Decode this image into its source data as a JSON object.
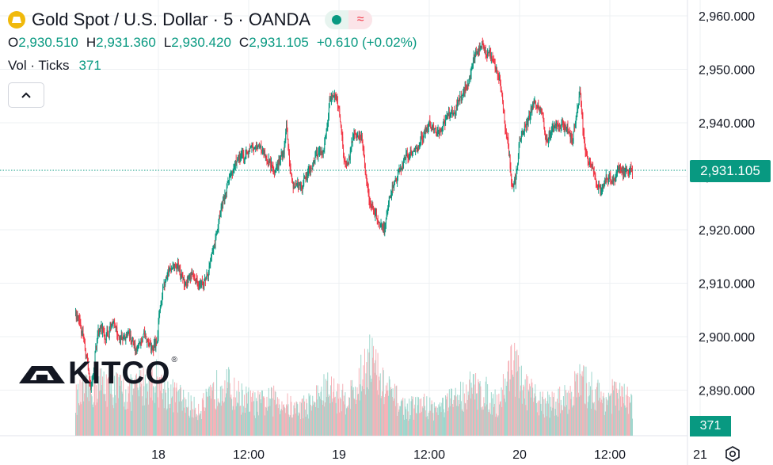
{
  "header": {
    "title": "Gold Spot / U.S. Dollar · 5 · OANDA",
    "ohlc": [
      {
        "k": "O",
        "v": "2,930.510"
      },
      {
        "k": "H",
        "v": "2,931.360"
      },
      {
        "k": "L",
        "v": "2,930.420"
      },
      {
        "k": "C",
        "v": "2,931.105"
      }
    ],
    "change": "+0.610 (+0.02%)",
    "vol_label": "Vol · Ticks",
    "vol_value": "371",
    "pill_wave": "≈"
  },
  "logo": {
    "text": "KITCO",
    "reg": "®"
  },
  "price_label": "2,931.105",
  "volume_label": "371",
  "colors": {
    "up": "#089981",
    "down": "#f23645",
    "vol_up": "#9ed6cc",
    "vol_down": "#f6b1b7",
    "grid": "#eef0f3",
    "accent": "#089981"
  },
  "icons": {
    "symbol": "gold-coin-icon",
    "collapse": "chevron-up-icon",
    "settings": "gear-icon"
  },
  "chart_data": {
    "type": "candlestick",
    "title": "Gold Spot / U.S. Dollar · 5 · OANDA",
    "y_ticks": [
      {
        "value": 2960,
        "label": "2,960.000"
      },
      {
        "value": 2950,
        "label": "2,950.000"
      },
      {
        "value": 2940,
        "label": "2,940.000"
      },
      {
        "value": 2930,
        "label": "2,930.000"
      },
      {
        "value": 2920,
        "label": "2,920.000"
      },
      {
        "value": 2910,
        "label": "2,910.000"
      },
      {
        "value": 2900,
        "label": "2,900.000"
      },
      {
        "value": 2890,
        "label": "2,890.000"
      }
    ],
    "x_ticks": [
      {
        "hour": 24,
        "label": "18"
      },
      {
        "hour": 36,
        "label": "12:00"
      },
      {
        "hour": 48,
        "label": "19"
      },
      {
        "hour": 60,
        "label": "12:00"
      },
      {
        "hour": 72,
        "label": "20"
      },
      {
        "hour": 84,
        "label": "12:00"
      },
      {
        "hour": 96,
        "label": "21"
      }
    ],
    "x_unit": "hours",
    "ylim": [
      2886,
      2962
    ],
    "xlim": [
      13,
      98.5
    ],
    "current_price": 2931.105,
    "grid": true,
    "price_path": [
      [
        13.0,
        2904
      ],
      [
        14.0,
        2900
      ],
      [
        15.0,
        2890
      ],
      [
        16.0,
        2902
      ],
      [
        17.0,
        2900
      ],
      [
        18.0,
        2903
      ],
      [
        19.0,
        2899
      ],
      [
        20.0,
        2901
      ],
      [
        21.0,
        2897
      ],
      [
        22.0,
        2900
      ],
      [
        23.0,
        2898
      ],
      [
        23.8,
        2899
      ],
      [
        24.0,
        2903
      ],
      [
        24.5,
        2909
      ],
      [
        25.5,
        2913
      ],
      [
        26.5,
        2913
      ],
      [
        27.5,
        2910
      ],
      [
        28.5,
        2912
      ],
      [
        29.5,
        2909
      ],
      [
        30.5,
        2912
      ],
      [
        31.5,
        2918
      ],
      [
        32.5,
        2925
      ],
      [
        33.5,
        2930
      ],
      [
        34.5,
        2933
      ],
      [
        35.5,
        2934
      ],
      [
        36.5,
        2936
      ],
      [
        37.5,
        2935
      ],
      [
        38.5,
        2933
      ],
      [
        39.5,
        2931
      ],
      [
        40.5,
        2934
      ],
      [
        41.0,
        2939
      ],
      [
        41.5,
        2930
      ],
      [
        42.0,
        2928
      ],
      [
        43.0,
        2928
      ],
      [
        44.0,
        2931
      ],
      [
        45.0,
        2934
      ],
      [
        46.0,
        2935
      ],
      [
        46.8,
        2945
      ],
      [
        47.5,
        2945
      ],
      [
        48.0,
        2942
      ],
      [
        48.5,
        2934
      ],
      [
        49.0,
        2931
      ],
      [
        50.0,
        2938
      ],
      [
        51.0,
        2937
      ],
      [
        51.5,
        2930
      ],
      [
        52.0,
        2925
      ],
      [
        53.0,
        2922
      ],
      [
        54.0,
        2920
      ],
      [
        55.0,
        2928
      ],
      [
        56.0,
        2931
      ],
      [
        57.0,
        2934
      ],
      [
        58.0,
        2935
      ],
      [
        59.0,
        2937
      ],
      [
        60.0,
        2940
      ],
      [
        61.0,
        2938
      ],
      [
        62.0,
        2940
      ],
      [
        63.0,
        2942
      ],
      [
        64.0,
        2944
      ],
      [
        65.0,
        2947
      ],
      [
        66.0,
        2953
      ],
      [
        67.0,
        2954
      ],
      [
        68.0,
        2953
      ],
      [
        69.0,
        2950
      ],
      [
        69.5,
        2946
      ],
      [
        70.0,
        2940
      ],
      [
        70.5,
        2935
      ],
      [
        71.0,
        2927
      ],
      [
        71.5,
        2930
      ],
      [
        72.0,
        2937
      ],
      [
        73.0,
        2940
      ],
      [
        74.0,
        2944
      ],
      [
        75.0,
        2942
      ],
      [
        75.5,
        2936
      ],
      [
        76.0,
        2938
      ],
      [
        77.0,
        2940
      ],
      [
        78.0,
        2939
      ],
      [
        79.0,
        2937
      ],
      [
        80.0,
        2946
      ],
      [
        80.5,
        2937
      ],
      [
        81.0,
        2933
      ],
      [
        82.0,
        2930
      ],
      [
        82.8,
        2927
      ],
      [
        83.5,
        2930
      ],
      [
        84.0,
        2929
      ],
      [
        85.0,
        2931
      ],
      [
        86.0,
        2931
      ],
      [
        87.0,
        2931.105
      ]
    ],
    "volume_level": [
      [
        13.0,
        0.35
      ],
      [
        15.0,
        0.45
      ],
      [
        17.0,
        0.5
      ],
      [
        20.0,
        0.4
      ],
      [
        23.5,
        0.55
      ],
      [
        24.5,
        0.45
      ],
      [
        27.0,
        0.35
      ],
      [
        29.0,
        0.25
      ],
      [
        31.0,
        0.35
      ],
      [
        32.5,
        0.55
      ],
      [
        34.0,
        0.4
      ],
      [
        37.0,
        0.3
      ],
      [
        40.0,
        0.35
      ],
      [
        42.0,
        0.25
      ],
      [
        44.0,
        0.3
      ],
      [
        46.5,
        0.45
      ],
      [
        48.5,
        0.35
      ],
      [
        50.5,
        0.45
      ],
      [
        52.0,
        0.8
      ],
      [
        53.5,
        0.5
      ],
      [
        55.5,
        0.35
      ],
      [
        57.0,
        0.25
      ],
      [
        59.0,
        0.3
      ],
      [
        61.0,
        0.25
      ],
      [
        63.5,
        0.35
      ],
      [
        65.5,
        0.45
      ],
      [
        67.5,
        0.4
      ],
      [
        69.0,
        0.3
      ],
      [
        70.5,
        0.55
      ],
      [
        71.0,
        0.8
      ],
      [
        72.0,
        0.5
      ],
      [
        74.0,
        0.35
      ],
      [
        76.0,
        0.3
      ],
      [
        78.0,
        0.35
      ],
      [
        80.0,
        0.5
      ],
      [
        81.5,
        0.45
      ],
      [
        83.0,
        0.35
      ],
      [
        85.0,
        0.4
      ],
      [
        87.0,
        0.3
      ]
    ],
    "volume_current": 371
  }
}
